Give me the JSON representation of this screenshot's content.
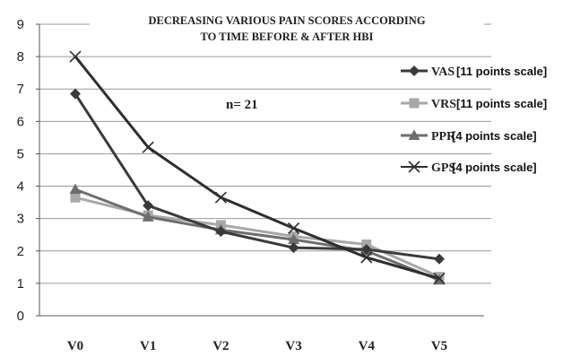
{
  "chart_data": {
    "type": "line",
    "title_line1": "DECREASING VARIOUS PAIN SCORES ACCORDING",
    "title_line2": "TO TIME BEFORE & AFTER HBI",
    "annotation": "n= 21",
    "categories": [
      "V0",
      "V1",
      "V2",
      "V3",
      "V4",
      "V5"
    ],
    "ylim": [
      0,
      9
    ],
    "yticks": [
      "0",
      "1",
      "2",
      "3",
      "4",
      "5",
      "6",
      "7",
      "8",
      "9"
    ],
    "grid": true,
    "legend_position": "right",
    "series": [
      {
        "name": "VAS",
        "scale": "[11 points scale]",
        "marker": "diamond",
        "color": "#3a3a3a",
        "values": [
          6.85,
          3.4,
          2.6,
          2.1,
          2.05,
          1.75
        ]
      },
      {
        "name": "VRS",
        "scale": "[11 points scale]",
        "marker": "square",
        "color": "#a8a8a8",
        "values": [
          3.65,
          3.1,
          2.8,
          2.45,
          2.2,
          1.2
        ]
      },
      {
        "name": "PPR",
        "scale": "[4 points scale]",
        "marker": "triangle",
        "color": "#6e6e6e",
        "values": [
          3.9,
          3.05,
          2.65,
          2.35,
          2.0,
          1.1
        ]
      },
      {
        "name": "GPS",
        "scale": "[4 points scale]",
        "marker": "x",
        "color": "#2e2e2e",
        "values": [
          8.0,
          5.2,
          3.65,
          2.7,
          1.8,
          1.15
        ]
      }
    ]
  }
}
